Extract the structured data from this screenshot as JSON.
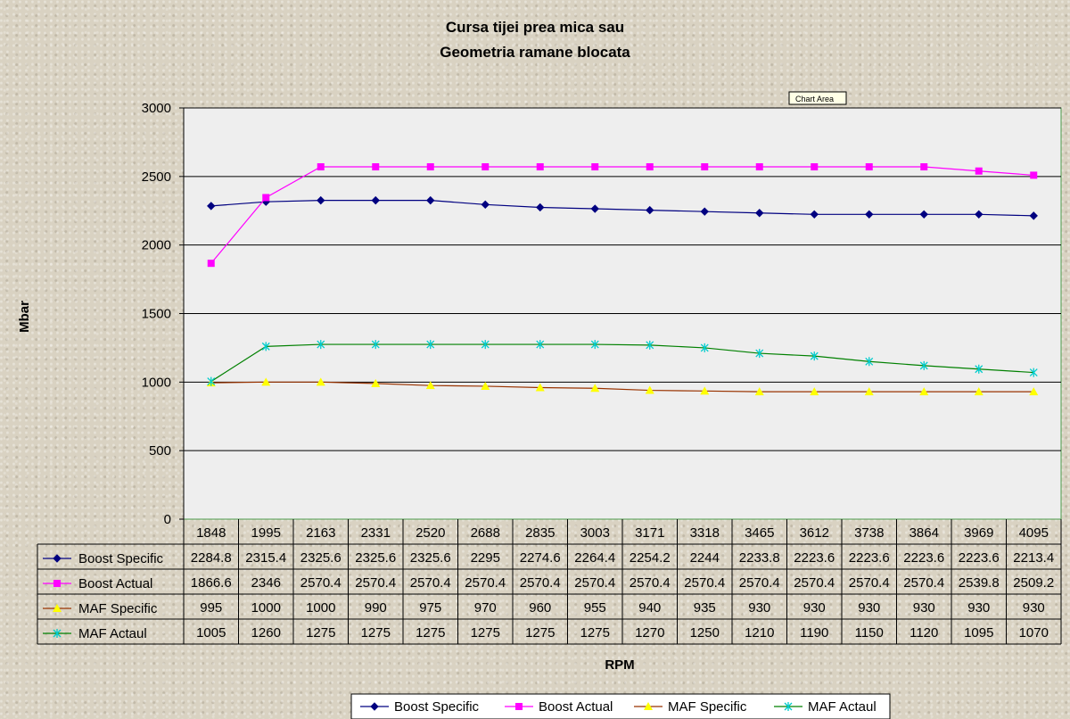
{
  "chart_data": {
    "type": "line",
    "title": [
      "Cursa tijei prea mica sau",
      "Geometria ramane blocata"
    ],
    "xlabel": "RPM",
    "ylabel": "Mbar",
    "ylim": [
      0,
      3000
    ],
    "yticks": [
      0,
      500,
      1000,
      1500,
      2000,
      2500,
      3000
    ],
    "grid": true,
    "legend_position": "bottom",
    "categories": [
      "1848",
      "1995",
      "2163",
      "2331",
      "2520",
      "2688",
      "2835",
      "3003",
      "3171",
      "3318",
      "3465",
      "3612",
      "3738",
      "3864",
      "3969",
      "4095"
    ],
    "series": [
      {
        "name": "Boost Specific",
        "color": "#000080",
        "marker": "diamond",
        "values": [
          2284.8,
          2315.4,
          2325.6,
          2325.6,
          2325.6,
          2295,
          2274.6,
          2264.4,
          2254.2,
          2244,
          2233.8,
          2223.6,
          2223.6,
          2223.6,
          2223.6,
          2213.4
        ]
      },
      {
        "name": "Boost Actual",
        "color": "#ff00ff",
        "marker": "square",
        "values": [
          1866.6,
          2346,
          2570.4,
          2570.4,
          2570.4,
          2570.4,
          2570.4,
          2570.4,
          2570.4,
          2570.4,
          2570.4,
          2570.4,
          2570.4,
          2570.4,
          2539.8,
          2509.2
        ]
      },
      {
        "name": "MAF Specific",
        "color": "#993300",
        "markerColor": "#ffff00",
        "marker": "triangle",
        "values": [
          995,
          1000,
          1000,
          990,
          975,
          970,
          960,
          955,
          940,
          935,
          930,
          930,
          930,
          930,
          930,
          930
        ]
      },
      {
        "name": "MAF Actaul",
        "color": "#008000",
        "markerColor": "#00cccc",
        "marker": "star",
        "values": [
          1005,
          1260,
          1275,
          1275,
          1275,
          1275,
          1275,
          1275,
          1270,
          1250,
          1210,
          1190,
          1150,
          1120,
          1095,
          1070
        ]
      }
    ],
    "legend_entries": [
      "Boost Specific",
      "Boost Actual",
      "MAF Specific",
      "MAF Actaul"
    ],
    "plot_background": "#eeeeee",
    "grid_color": "#000000",
    "plot_border_color": "#4a9a4a",
    "tooltip": "Chart Area"
  }
}
